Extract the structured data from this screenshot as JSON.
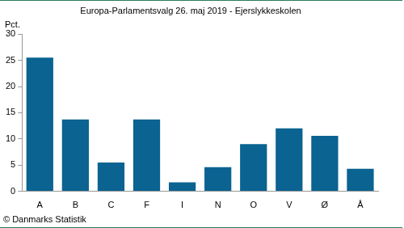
{
  "chart_data": {
    "type": "bar",
    "title": "Europa-Parlamentsvalg 26. maj 2019 - Ejerslykkeskolen",
    "ylabel": "Pct.",
    "source": "© Danmarks Statistik",
    "categories": [
      "A",
      "B",
      "C",
      "F",
      "I",
      "N",
      "O",
      "V",
      "Ø",
      "Å"
    ],
    "values": [
      25.5,
      13.7,
      5.5,
      13.7,
      1.7,
      4.6,
      9.0,
      12.0,
      10.6,
      4.3
    ],
    "color": "#0a6391",
    "ylim": [
      0,
      30
    ],
    "yticks": [
      0,
      5,
      10,
      15,
      20,
      25,
      30
    ],
    "grid": false
  }
}
